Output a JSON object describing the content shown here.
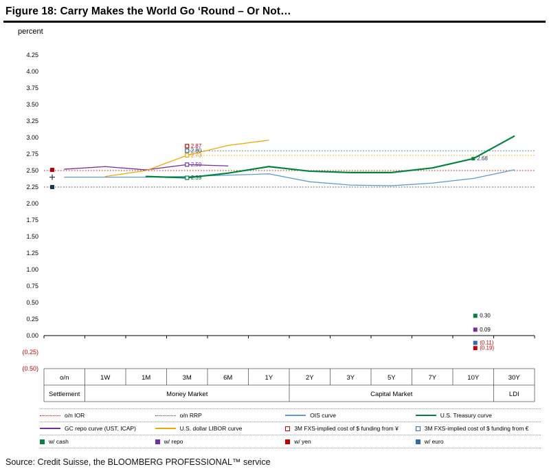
{
  "title": "Figure 18: Carry Makes the World Go ‘Round – Or Not…",
  "source": "Source: Credit Suisse, the BLOOMBERG PROFESSIONAL™ service",
  "chart_data": {
    "type": "line",
    "ylabel": "percent",
    "ylim": [
      -0.5,
      4.25
    ],
    "ytick_step": 0.25,
    "grid": false,
    "negative_format": "parentheses-red",
    "yticks": [
      "4.25",
      "4.00",
      "3.75",
      "3.50",
      "3.25",
      "3.00",
      "2.75",
      "2.50",
      "2.25",
      "2.00",
      "1.75",
      "1.50",
      "1.25",
      "1.00",
      "0.75",
      "0.50",
      "0.25",
      "0.00",
      "(0.25)",
      "(0.50)"
    ],
    "categories": [
      "o/n",
      "1W",
      "1M",
      "3M",
      "6M",
      "1Y",
      "2Y",
      "3Y",
      "5Y",
      "7Y",
      "10Y",
      "30Y"
    ],
    "category_groups": [
      {
        "label": "Settlement",
        "span": [
          0,
          0
        ]
      },
      {
        "label": "Money Market",
        "span": [
          1,
          5
        ]
      },
      {
        "label": "Capital Market",
        "span": [
          6,
          10
        ]
      },
      {
        "label": "LDI",
        "span": [
          11,
          11
        ]
      }
    ],
    "series": [
      {
        "key": "ois",
        "name": "OIS curve",
        "color": "#5b9bd5",
        "width": 1.3,
        "points": [
          [
            0,
            2.4
          ],
          [
            1,
            2.4
          ],
          [
            2,
            2.4
          ],
          [
            3,
            2.41
          ],
          [
            4,
            2.43
          ],
          [
            5,
            2.45
          ],
          [
            6,
            2.33
          ],
          [
            7,
            2.28
          ],
          [
            8,
            2.27
          ],
          [
            9,
            2.31
          ],
          [
            10,
            2.38
          ],
          [
            11,
            2.51
          ]
        ]
      },
      {
        "key": "treasury",
        "name": "U.S. Treasury curve",
        "color": "#00843d",
        "width": 2.2,
        "points": [
          [
            2,
            2.41
          ],
          [
            3,
            2.39
          ],
          [
            4,
            2.46
          ],
          [
            5,
            2.56
          ],
          [
            6,
            2.49
          ],
          [
            7,
            2.47
          ],
          [
            8,
            2.47
          ],
          [
            9,
            2.54
          ],
          [
            10,
            2.68
          ],
          [
            11,
            3.02
          ]
        ]
      },
      {
        "key": "repo",
        "name": "GC repo curve (UST, ICAP)",
        "color": "#7030a0",
        "width": 1.3,
        "points": [
          [
            0,
            2.52
          ],
          [
            1,
            2.56
          ],
          [
            2,
            2.51
          ],
          [
            3,
            2.59
          ],
          [
            4,
            2.57
          ]
        ]
      },
      {
        "key": "libor",
        "name": "U.S. dollar LIBOR curve",
        "color": "#f0a800",
        "width": 1.3,
        "points": [
          [
            1,
            2.41
          ],
          [
            2,
            2.5
          ],
          [
            3,
            2.73
          ],
          [
            4,
            2.88
          ],
          [
            5,
            2.96
          ]
        ]
      }
    ],
    "reference_lines": [
      {
        "key": "ior",
        "name": "o/n IOR",
        "value": 2.5,
        "color": "#c00000",
        "from": 0,
        "to": 12
      },
      {
        "key": "rrp",
        "name": "o/n RRP",
        "value": 2.25,
        "color": "#404040",
        "from": 0,
        "to": 12
      },
      {
        "key": "euro-proj",
        "name": "3M euro-implied funding projection",
        "value": 2.8,
        "color": "#2e6da4",
        "from": 3.5,
        "to": 12
      },
      {
        "key": "libor-proj",
        "name": "3M LIBOR funding projection",
        "value": 2.73,
        "color": "#f0a800",
        "from": 3.5,
        "to": 12
      }
    ],
    "point_labels": [
      {
        "key": "yen-3m",
        "text": "2.87",
        "value": 2.87,
        "x": 3.5,
        "marker": "square-hollow",
        "color": "#c00000",
        "label_color": "#c00000"
      },
      {
        "key": "euro-3m",
        "text": "2.80",
        "value": 2.8,
        "x": 3.5,
        "marker": "square-hollow",
        "color": "#2e6da4",
        "label_color": "#17365d"
      },
      {
        "key": "libor-3m",
        "text": "2.73",
        "value": 2.73,
        "x": 3.5,
        "marker": "square-hollow",
        "color": "#f0a800",
        "label_color": "#d98700"
      },
      {
        "key": "repo-3m",
        "text": "2.59",
        "value": 2.59,
        "x": 3.5,
        "marker": "square-hollow",
        "color": "#7030a0",
        "label_color": "#7030a0"
      },
      {
        "key": "cash-3m",
        "text": "2.39",
        "value": 2.39,
        "x": 3.5,
        "marker": "square-hollow",
        "color": "#00843d",
        "label_color": "#00592a"
      },
      {
        "key": "ust-10y",
        "text": "2.68",
        "value": 2.68,
        "x": 10.5,
        "marker": "square-filled",
        "color": "#00843d",
        "label_color": "#17365d"
      }
    ],
    "carry_markers": [
      {
        "key": "carry-cash",
        "text": "0.30",
        "value": 0.3,
        "x": 10.55,
        "color": "#00843d",
        "label_color": "#000000"
      },
      {
        "key": "carry-repo",
        "text": "0.09",
        "value": 0.09,
        "x": 10.55,
        "color": "#7030a0",
        "label_color": "#000000"
      },
      {
        "key": "carry-euro",
        "text": "(0.11)",
        "value": -0.11,
        "x": 10.55,
        "color": "#2e6da4",
        "label_color": "#c00000"
      },
      {
        "key": "carry-yen",
        "text": "(0.19)",
        "value": -0.19,
        "x": 10.55,
        "color": "#c00000",
        "label_color": "#c00000"
      }
    ],
    "left_markers": [
      {
        "key": "on-yen",
        "shape": "square",
        "value": 2.51,
        "color": "#c00000"
      },
      {
        "key": "on-cross",
        "shape": "plus",
        "value": 2.4,
        "color": "#333333"
      },
      {
        "key": "on-euro",
        "shape": "square",
        "value": 2.25,
        "color": "#17365d"
      }
    ]
  },
  "legend": {
    "rows": [
      [
        {
          "label": "o/n IOR",
          "swatch": "dotted-line",
          "color": "#c00000"
        },
        {
          "label": "o/n RRP",
          "swatch": "dotted-line",
          "color": "#404040"
        },
        {
          "label": "OIS curve",
          "swatch": "line",
          "color": "#5b9bd5"
        },
        {
          "label": "U.S. Treasury curve",
          "swatch": "line",
          "color": "#00843d"
        }
      ],
      [
        {
          "label": "GC repo curve (UST, ICAP)",
          "swatch": "line",
          "color": "#7030a0"
        },
        {
          "label": "U.S. dollar LIBOR curve",
          "swatch": "line",
          "color": "#f0a800"
        },
        {
          "label": "3M FXS-implied cost of $ funding from ¥",
          "swatch": "square-hollow",
          "color": "#c00000"
        },
        {
          "label": "3M FXS-implied cost of $ funding from €",
          "swatch": "square-hollow",
          "color": "#2e6da4"
        }
      ],
      [
        {
          "label": "w/ cash",
          "swatch": "square",
          "color": "#00843d"
        },
        {
          "label": "w/ repo",
          "swatch": "square",
          "color": "#7030a0"
        },
        {
          "label": "w/ yen",
          "swatch": "square",
          "color": "#c00000"
        },
        {
          "label": "w/ euro",
          "swatch": "square",
          "color": "#2e6da4"
        }
      ]
    ],
    "col_widths": [
      "23%",
      "26%",
      "26%",
      "25%"
    ]
  }
}
